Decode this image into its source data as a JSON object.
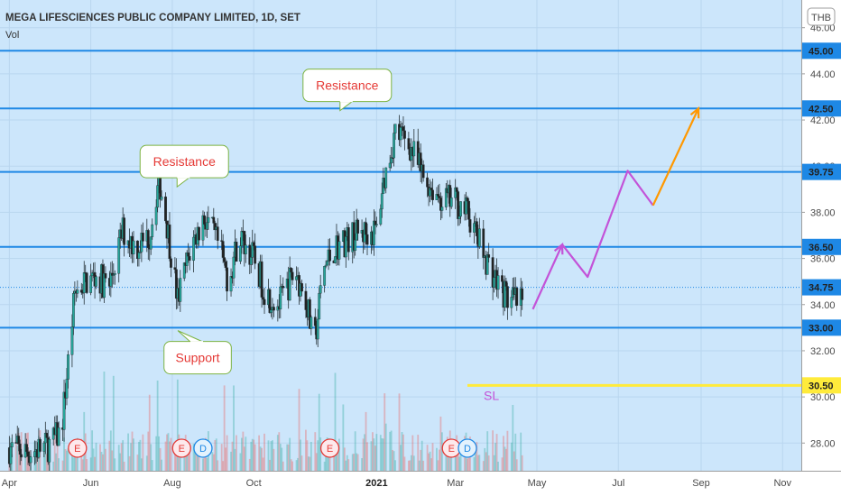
{
  "chart_data": {
    "type": "candlestick",
    "title": "MEGA LIFESCIENCES PUBLIC COMPANY LIMITED, 1D, SET",
    "indicator": "Vol",
    "currency": "THB",
    "colors": {
      "background": "#cce6fb",
      "up": "#26a69a",
      "down": "#ef5350",
      "level_line": "#1e88e5",
      "stop_loss": "#ffeb3b",
      "projection_1": "#c353d8",
      "projection_2": "#ff9800"
    },
    "ylim": [
      26.8,
      47.2
    ],
    "y_ticks": [
      "28.00",
      "30.00",
      "32.00",
      "34.00",
      "36.00",
      "38.00",
      "40.00",
      "42.00",
      "44.00",
      "46.00"
    ],
    "y_tick_values": [
      28,
      30,
      32,
      34,
      36,
      38,
      40,
      42,
      44,
      46
    ],
    "x_ticks": [
      "Apr",
      "Jun",
      "Aug",
      "Oct",
      "2021",
      "Mar",
      "May",
      "Jul",
      "Sep",
      "Nov"
    ],
    "x_tick_dates": [
      "2020-04-01",
      "2020-06-01",
      "2020-08-01",
      "2020-10-01",
      "2021-01-01",
      "2021-03-01",
      "2021-05-01",
      "2021-07-01",
      "2021-09-01",
      "2021-11-01"
    ],
    "xlim": [
      "2020-03-25",
      "2021-11-15"
    ],
    "price_levels": [
      {
        "value": 45.0,
        "label": "45.00"
      },
      {
        "value": 42.5,
        "label": "42.50"
      },
      {
        "value": 39.75,
        "label": "39.75"
      },
      {
        "value": 36.5,
        "label": "36.50"
      },
      {
        "value": 33.0,
        "label": "33.00"
      }
    ],
    "last_price": {
      "value": 34.75,
      "label": "34.75"
    },
    "stop_loss": {
      "value": 30.5,
      "label": "30.50",
      "text": "SL",
      "from": "2021-03-10"
    },
    "price_path": [
      [
        "2020-04-01",
        27.8
      ],
      [
        "2020-04-15",
        27.6
      ],
      [
        "2020-05-01",
        27.9
      ],
      [
        "2020-05-10",
        28.5
      ],
      [
        "2020-05-15",
        31.5
      ],
      [
        "2020-05-20",
        34.5
      ],
      [
        "2020-05-28",
        35.0
      ],
      [
        "2020-06-05",
        35.2
      ],
      [
        "2020-06-15",
        34.8
      ],
      [
        "2020-06-25",
        37.2
      ],
      [
        "2020-07-05",
        36.5
      ],
      [
        "2020-07-15",
        37.0
      ],
      [
        "2020-07-22",
        39.5
      ],
      [
        "2020-07-28",
        37.5
      ],
      [
        "2020-08-05",
        34.2
      ],
      [
        "2020-08-15",
        36.5
      ],
      [
        "2020-08-25",
        37.8
      ],
      [
        "2020-09-05",
        36.5
      ],
      [
        "2020-09-12",
        35.0
      ],
      [
        "2020-09-20",
        37.0
      ],
      [
        "2020-10-01",
        36.0
      ],
      [
        "2020-10-10",
        34.5
      ],
      [
        "2020-10-20",
        34.0
      ],
      [
        "2020-11-01",
        35.5
      ],
      [
        "2020-11-10",
        34.0
      ],
      [
        "2020-11-15",
        32.0
      ],
      [
        "2020-11-22",
        35.5
      ],
      [
        "2020-12-01",
        36.5
      ],
      [
        "2020-12-15",
        37.0
      ],
      [
        "2021-01-01",
        37.2
      ],
      [
        "2021-01-05",
        39.0
      ],
      [
        "2021-01-15",
        41.5
      ],
      [
        "2021-01-25",
        41.0
      ],
      [
        "2021-02-05",
        39.5
      ],
      [
        "2021-02-20",
        38.5
      ],
      [
        "2021-03-01",
        38.5
      ],
      [
        "2021-03-10",
        38.0
      ],
      [
        "2021-03-20",
        36.5
      ],
      [
        "2021-04-01",
        35.0
      ],
      [
        "2021-04-10",
        34.2
      ],
      [
        "2021-04-20",
        34.0
      ]
    ],
    "projection_1": [
      [
        "2021-04-28",
        33.8
      ],
      [
        "2021-05-20",
        36.6
      ],
      [
        "2021-06-08",
        35.2
      ],
      [
        "2021-07-08",
        39.8
      ],
      [
        "2021-07-27",
        38.3
      ]
    ],
    "projection_2": [
      [
        "2021-07-27",
        38.3
      ],
      [
        "2021-08-30",
        42.5
      ]
    ],
    "annotations": [
      {
        "text": "Resistance",
        "date": "2020-08-10",
        "price": 40.2
      },
      {
        "text": "Resistance",
        "date": "2020-12-10",
        "price": 43.5
      },
      {
        "text": "Support",
        "date": "2020-08-20",
        "price": 31.7
      }
    ],
    "event_markers": [
      {
        "date": "2020-05-22",
        "letter": "E"
      },
      {
        "date": "2020-08-08",
        "letter": "E"
      },
      {
        "date": "2020-08-24",
        "letter": "D"
      },
      {
        "date": "2020-11-27",
        "letter": "E"
      },
      {
        "date": "2021-02-26",
        "letter": "E"
      },
      {
        "date": "2021-03-10",
        "letter": "D"
      }
    ]
  }
}
